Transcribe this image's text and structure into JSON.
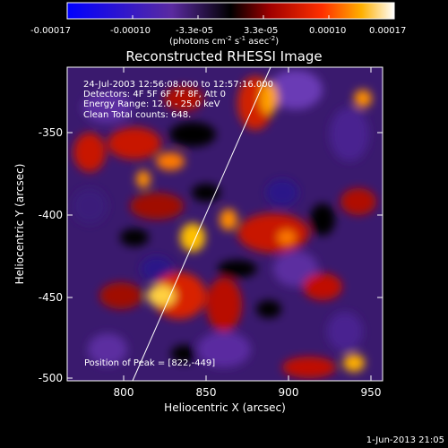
{
  "colorbar": {
    "ticks": [
      "-0.00017",
      "-0.00010",
      "-3.3e-05",
      "3.3e-05",
      "0.00010",
      "0.00017"
    ],
    "unit_prefix": "(photons cm",
    "unit_sup1": "-2",
    "unit_mid": " s",
    "unit_sup2": "-1",
    "unit_mid2": " asec",
    "unit_sup3": "-2",
    "unit_suffix": ")"
  },
  "image": {
    "title": "Reconstructed RHESSI Image",
    "info_lines": [
      "24-Jul-2003 12:56:08.000 to 12:57:16.000",
      "Detectors: 4F 5F 6F 7F 8F, Att 0",
      "Energy Range: 12.0 - 25.0 keV",
      "Clean    Total counts: 648."
    ],
    "peak_label": "Position of Peak = [822,-449]",
    "xlabel": "Heliocentric X (arcsec)",
    "ylabel": "Heliocentric Y (arcsec)",
    "xticks": [
      "800",
      "850",
      "900",
      "950"
    ],
    "yticks": [
      "-350",
      "-400",
      "-450",
      "-500"
    ],
    "colormap": "red-temperature"
  },
  "footer": {
    "timestamp": "1-Jun-2013 21:05"
  }
}
